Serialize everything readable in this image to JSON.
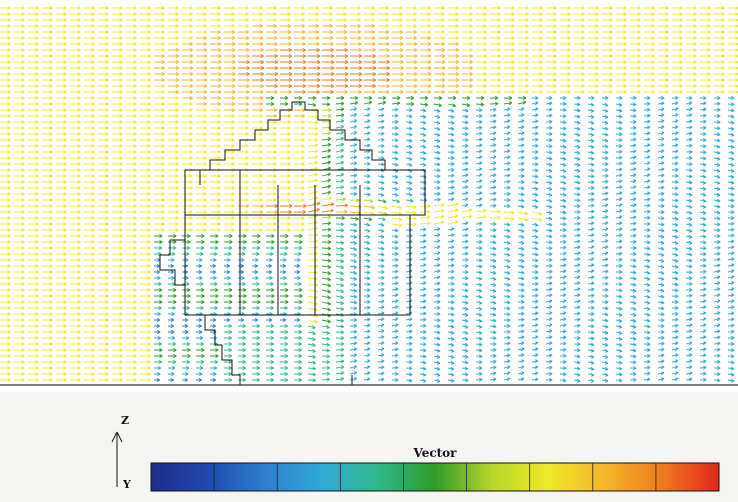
{
  "colors": {
    "scale": [
      "#1e2c8a",
      "#1f49b0",
      "#2f7fd0",
      "#2fa9d6",
      "#2fb88a",
      "#2f9a2a",
      "#b8d62a",
      "#f0e82a",
      "#f4b52a",
      "#f07a1e",
      "#e0281e"
    ],
    "ground_line": "#333333",
    "building_outline": "#111111"
  },
  "axes": {
    "z_label": "Z",
    "y_label": "Y"
  },
  "colorbar": {
    "title": "Vector",
    "segments": 9
  }
}
